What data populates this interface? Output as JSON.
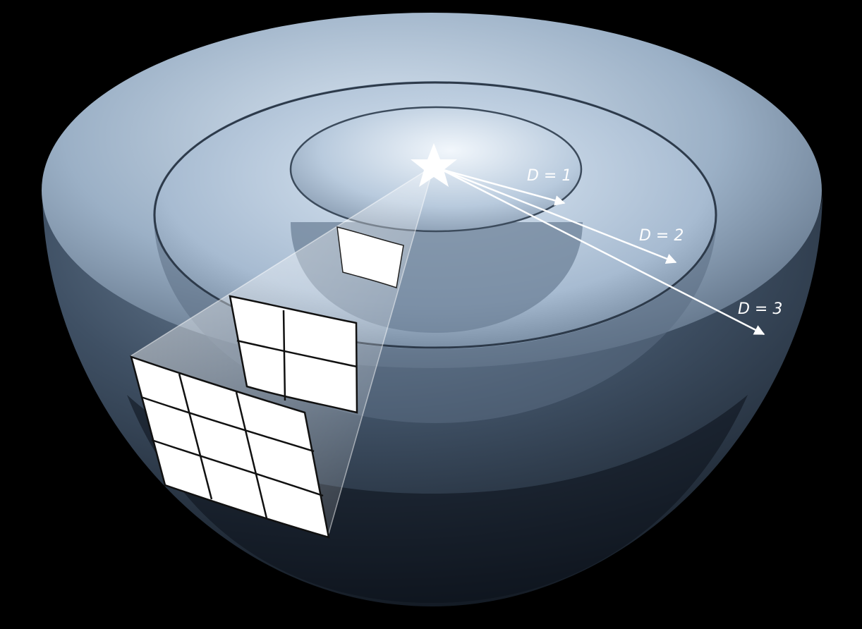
{
  "diagram": {
    "labels": [
      "D = 1",
      "D = 2",
      "D = 3"
    ],
    "colors": {
      "background": "#000000",
      "hemisphere_light": "#b7c8dc",
      "hemisphere_dark": "#1f2a38",
      "patch": "#ffffff",
      "arrow": "#ffffff"
    },
    "patch_grids": [
      1,
      2,
      3
    ],
    "source_icon": "star-icon"
  }
}
